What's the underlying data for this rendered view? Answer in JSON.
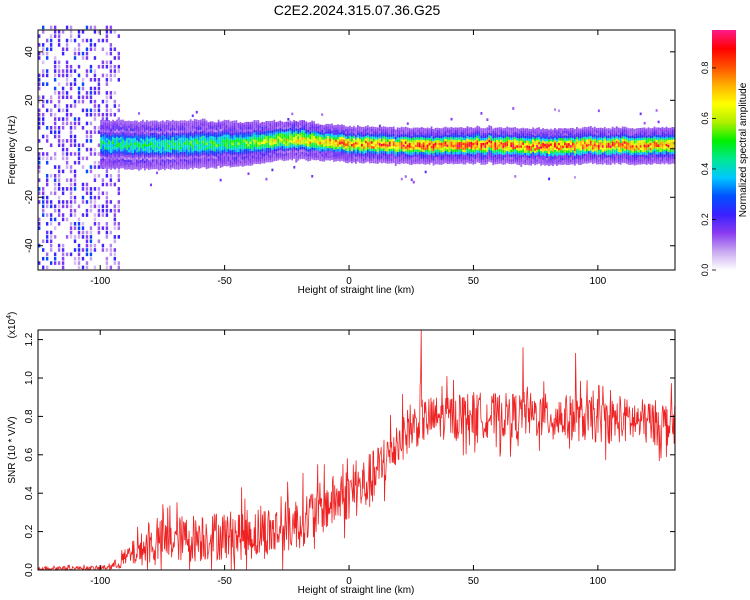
{
  "figure": {
    "title": "C2E2.2024.315.07.36.G25"
  },
  "chart_data": [
    {
      "type": "heatmap",
      "xlabel": "Height of straight line (km)",
      "ylabel": "Frequency (Hz)",
      "xlim": [
        -125,
        131
      ],
      "ylim": [
        -50,
        49
      ],
      "xticks": [
        -100,
        -50,
        0,
        50,
        100
      ],
      "yticks": [
        -40,
        -20,
        0,
        20,
        40
      ],
      "colorbar": {
        "label": "Normalized spectral amplitude",
        "range": [
          0,
          0.95
        ],
        "ticks": [
          0.0,
          0.2,
          0.4,
          0.6,
          0.8
        ],
        "tick_labels": [
          "0.0",
          "0.2",
          "0.4",
          "0.6",
          "0.8"
        ],
        "colors": [
          "#ffffff",
          "#c8a8f0",
          "#8a3cf0",
          "#3a20ff",
          "#0050ff",
          "#00c8ff",
          "#00e890",
          "#00f000",
          "#b0f000",
          "#ffff00",
          "#ffb000",
          "#ff5000",
          "#ff0000",
          "#ff1a8c"
        ]
      },
      "ridge_profile": {
        "x": [
          -100,
          -80,
          -60,
          -40,
          -30,
          -20,
          -10,
          0,
          20,
          40,
          60,
          80,
          100,
          131
        ],
        "center_hz": [
          1.5,
          1.0,
          1.5,
          2.0,
          3.0,
          3.5,
          2.5,
          1.5,
          1.0,
          1.0,
          1.0,
          0.5,
          1.0,
          1.0
        ],
        "half_width_hz": [
          6,
          6,
          6,
          5.5,
          5,
          5,
          4.5,
          4.5,
          4.5,
          4.5,
          4.5,
          4.5,
          4.5,
          4.5
        ],
        "peak_amplitude": [
          0.5,
          0.5,
          0.55,
          0.6,
          0.7,
          0.75,
          0.8,
          0.85,
          0.9,
          0.9,
          0.9,
          0.9,
          0.9,
          0.85
        ]
      },
      "noise_region": {
        "x_range": [
          -125,
          -92
        ],
        "amplitude": [
          0.05,
          0.3
        ]
      }
    },
    {
      "type": "line",
      "xlabel": "Height of straight line (km)",
      "ylabel": "SNR (10 * V/V)",
      "y_multiplier": "(x10",
      "y_multiplier_exp": "4",
      "y_multiplier_close": ")",
      "xlim": [
        -125,
        131
      ],
      "ylim": [
        0,
        1.25
      ],
      "xticks": [
        -100,
        -50,
        0,
        50,
        100
      ],
      "yticks": [
        0.0,
        0.2,
        0.4,
        0.6,
        0.8,
        1.0,
        1.2
      ],
      "ytick_labels": [
        "0.0",
        "0.2",
        "0.4",
        "0.6",
        "0.8",
        "1.0",
        "1.2"
      ],
      "color": "#ee2222",
      "envelope": {
        "x": [
          -125,
          -100,
          -95,
          -90,
          -85,
          -80,
          -75,
          -70,
          -60,
          -50,
          -40,
          -30,
          -20,
          -10,
          0,
          5,
          10,
          15,
          20,
          25,
          30,
          40,
          50,
          60,
          70,
          80,
          90,
          100,
          110,
          120,
          131
        ],
        "mean": [
          0.01,
          0.01,
          0.02,
          0.06,
          0.1,
          0.13,
          0.15,
          0.16,
          0.17,
          0.18,
          0.19,
          0.2,
          0.25,
          0.33,
          0.4,
          0.43,
          0.48,
          0.58,
          0.68,
          0.74,
          0.78,
          0.8,
          0.81,
          0.8,
          0.81,
          0.8,
          0.79,
          0.78,
          0.78,
          0.77,
          0.76
        ],
        "spread": [
          0.01,
          0.01,
          0.02,
          0.05,
          0.08,
          0.1,
          0.12,
          0.12,
          0.13,
          0.13,
          0.14,
          0.14,
          0.14,
          0.14,
          0.14,
          0.15,
          0.15,
          0.14,
          0.13,
          0.12,
          0.12,
          0.12,
          0.12,
          0.12,
          0.12,
          0.12,
          0.12,
          0.12,
          0.12,
          0.12,
          0.12
        ]
      },
      "extreme_peaks": [
        {
          "x": 29,
          "y": 1.25
        },
        {
          "x": 70,
          "y": 1.16
        },
        {
          "x": 91,
          "y": 1.13
        }
      ]
    }
  ]
}
